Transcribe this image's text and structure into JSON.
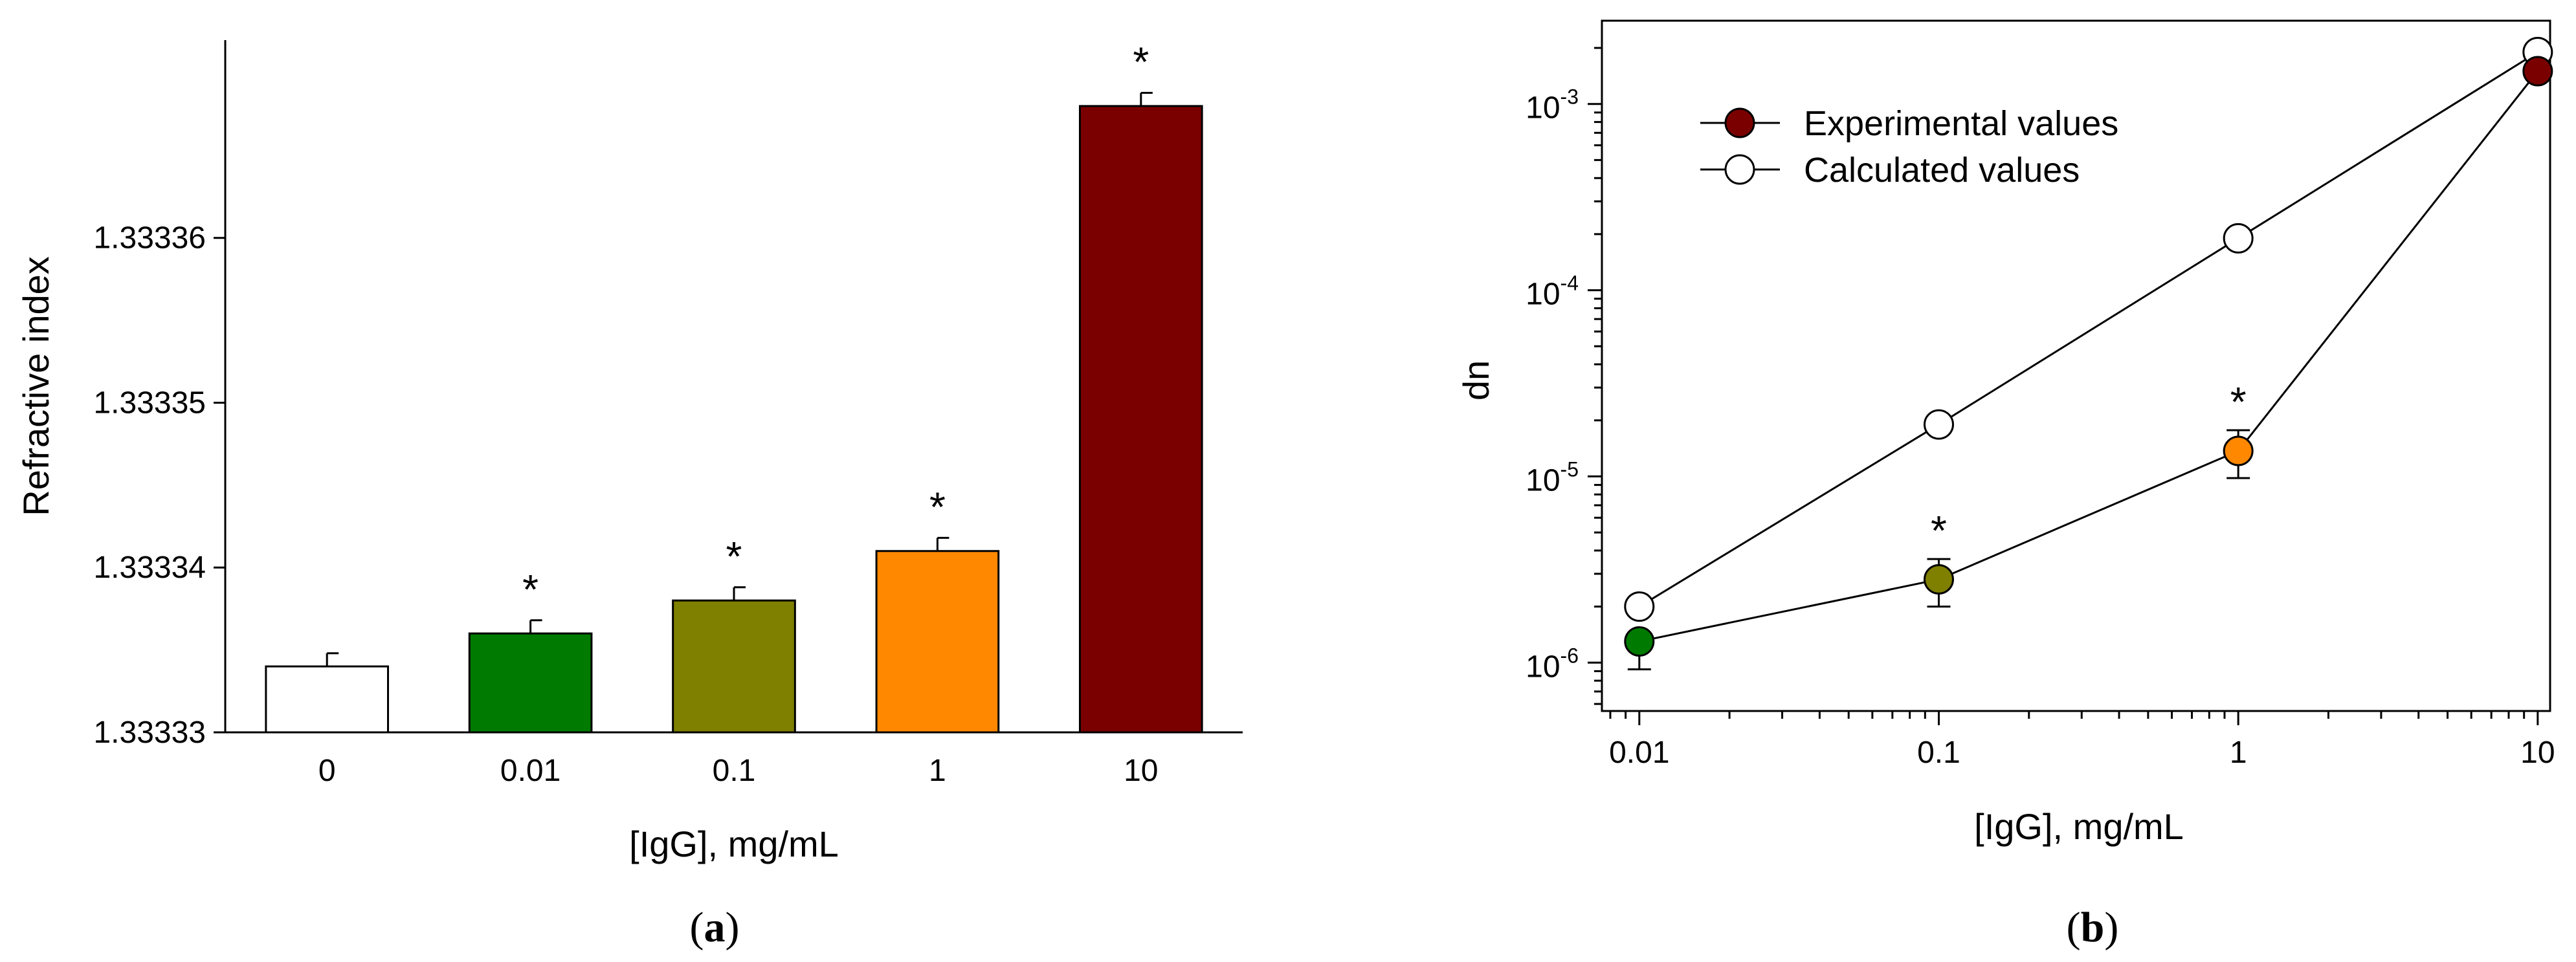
{
  "chart_data": [
    {
      "type": "bar",
      "panel_label": {
        "open": "(",
        "letter": "a",
        "close": ")"
      },
      "title": "",
      "xlabel": "[IgG], mg/mL",
      "ylabel": "Refractive index",
      "categories": [
        "0",
        "0.01",
        "0.1",
        "1",
        "10"
      ],
      "values": [
        1.333334,
        1.333336,
        1.333338,
        1.333341,
        1.333368
      ],
      "errors": [
        8e-07,
        8e-07,
        8e-07,
        8e-07,
        8e-07
      ],
      "significance": [
        "",
        "*",
        "*",
        "*",
        "*"
      ],
      "bar_colors": [
        "#ffffff",
        "#007a00",
        "#7f7f00",
        "#ff8800",
        "#7a0000"
      ],
      "ylim": [
        1.33333,
        1.333372
      ],
      "yticks": [
        1.33333,
        1.33334,
        1.33335,
        1.33336
      ],
      "ytick_labels": [
        "1.33333",
        "1.33334",
        "1.33335",
        "1.33336"
      ],
      "grid": false
    },
    {
      "type": "line",
      "panel_label": {
        "open": "(",
        "letter": "b",
        "close": ")"
      },
      "title": "",
      "xlabel": "[IgG], mg/mL",
      "ylabel": "dn",
      "x_scale": "log",
      "y_scale": "log",
      "xlim": [
        0.0075,
        11
      ],
      "ylim": [
        5.5e-07,
        0.0028
      ],
      "xticks": [
        0.01,
        0.1,
        1,
        10
      ],
      "xtick_labels": [
        "0.01",
        "0.1",
        "1",
        "10"
      ],
      "yticks": [
        1e-06,
        1e-05,
        0.0001,
        0.001
      ],
      "ytick_labels": [
        {
          "base": "10",
          "exp": "-6"
        },
        {
          "base": "10",
          "exp": "-5"
        },
        {
          "base": "10",
          "exp": "-4"
        },
        {
          "base": "10",
          "exp": "-3"
        }
      ],
      "legend_position": "top-left",
      "grid": false,
      "series": [
        {
          "name": "Experimental values",
          "x": [
            0.01,
            0.1,
            1,
            10
          ],
          "y": [
            1.3e-06,
            2.8e-06,
            1.37e-05,
            0.0015
          ],
          "err_low": [
            9.2e-07,
            2e-06,
            9.8e-06,
            0.0015
          ],
          "err_high": [
            1.3e-06,
            3.6e-06,
            1.77e-05,
            0.0015
          ],
          "marker_colors": [
            "#007a00",
            "#7f7f00",
            "#ff8800",
            "#7a0000"
          ],
          "legend_color": "#7a0000",
          "significance": [
            "",
            "*",
            "*",
            ""
          ]
        },
        {
          "name": "Calculated values",
          "x": [
            0.01,
            0.1,
            1,
            10
          ],
          "y": [
            2e-06,
            1.9e-05,
            0.00019,
            0.0019
          ],
          "marker_colors": [
            "#ffffff",
            "#ffffff",
            "#ffffff",
            "#ffffff"
          ],
          "legend_color": "#ffffff"
        }
      ]
    }
  ]
}
